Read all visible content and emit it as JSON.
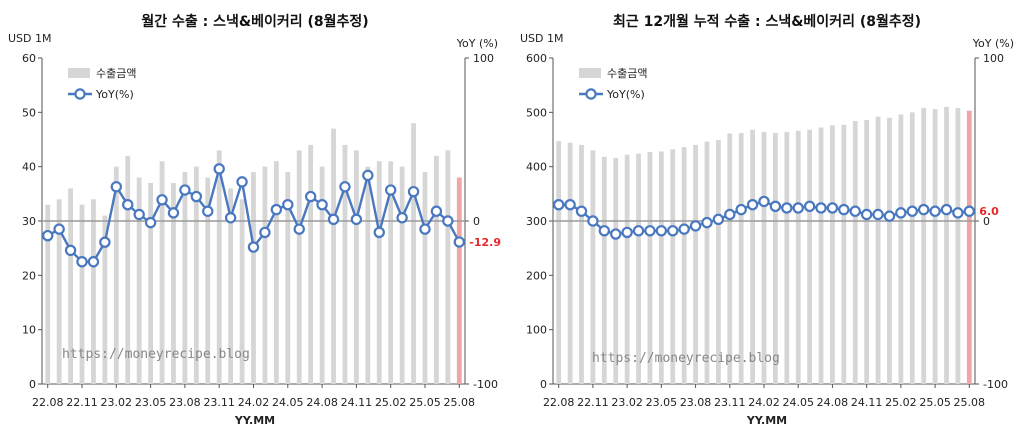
{
  "colors": {
    "bar": "#d6d6d6",
    "bar_last": "#f0a6a6",
    "line": "#4a78c0",
    "marker_fill": "#ffffff",
    "zero": "#9a9a9a",
    "label_red": "#e8272b"
  },
  "x_ticks": [
    "22.08",
    "22.11",
    "23.02",
    "23.05",
    "23.08",
    "23.11",
    "24.02",
    "24.05",
    "24.08",
    "24.11",
    "25.02",
    "25.05",
    "25.08"
  ],
  "xlabel": "YY.MM",
  "watermark": "https://moneyrecipe.blog",
  "legend": {
    "bar": "수출금액",
    "line": "YoY(%)"
  },
  "chart_data": [
    {
      "type": "bar",
      "title": "월간 수출 : 스낵&베이커리 (8월추정)",
      "ylabel_left": "USD 1M",
      "ylabel_right": "YoY (%)",
      "ylim_left": [
        0,
        60
      ],
      "ylim_right": [
        -100,
        100
      ],
      "yticks_left": [
        "0",
        "10",
        "20",
        "30",
        "40",
        "50",
        "60"
      ],
      "yticks_right": [
        "-100",
        "0",
        "100"
      ],
      "series": [
        {
          "name": "수출금액",
          "axis": "left",
          "values": [
            33,
            34,
            36,
            33,
            34,
            31,
            40,
            42,
            38,
            37,
            41,
            37,
            39,
            40,
            38,
            43,
            36,
            34,
            39,
            40,
            41,
            39,
            43,
            44,
            40,
            47,
            44,
            43,
            40,
            41,
            41,
            40,
            48,
            39,
            42,
            43,
            38
          ]
        },
        {
          "name": "YoY(%)",
          "axis": "right",
          "values": [
            -9,
            -5,
            -18,
            -25,
            -25,
            -13,
            21,
            10,
            4,
            -1,
            13,
            5,
            19,
            15,
            6,
            32,
            2,
            24,
            -16,
            -7,
            7,
            10,
            -5,
            15,
            10,
            1,
            21,
            1,
            28,
            -7,
            19,
            2,
            18,
            -5,
            6,
            0,
            -12.9
          ]
        }
      ],
      "last_label": "-12.9"
    },
    {
      "type": "bar",
      "title": "최근 12개월 누적 수출 : 스낵&베이커리 (8월추정)",
      "ylabel_left": "USD 1M",
      "ylabel_right": "YoY (%)",
      "ylim_left": [
        0,
        600
      ],
      "ylim_right": [
        -100,
        100
      ],
      "yticks_left": [
        "0",
        "100",
        "200",
        "300",
        "400",
        "500",
        "600"
      ],
      "yticks_right": [
        "-100",
        "0",
        "100"
      ],
      "series": [
        {
          "name": "수출금액",
          "axis": "left",
          "values": [
            447,
            444,
            440,
            430,
            418,
            416,
            422,
            424,
            427,
            428,
            432,
            436,
            440,
            446,
            449,
            461,
            462,
            468,
            464,
            462,
            464,
            466,
            468,
            472,
            476,
            477,
            484,
            486,
            492,
            490,
            496,
            500,
            508,
            506,
            510,
            508,
            503
          ]
        },
        {
          "name": "YoY(%)",
          "axis": "right",
          "values": [
            10,
            10,
            6,
            0,
            -6,
            -8,
            -7,
            -6,
            -6,
            -6,
            -6,
            -5,
            -3,
            -1,
            1,
            4,
            7,
            10,
            12,
            9,
            8,
            8,
            9,
            8,
            8,
            7,
            6,
            4,
            4,
            3,
            5,
            6,
            7,
            6,
            7,
            5,
            6.0
          ]
        }
      ],
      "last_label": "6.0"
    }
  ]
}
